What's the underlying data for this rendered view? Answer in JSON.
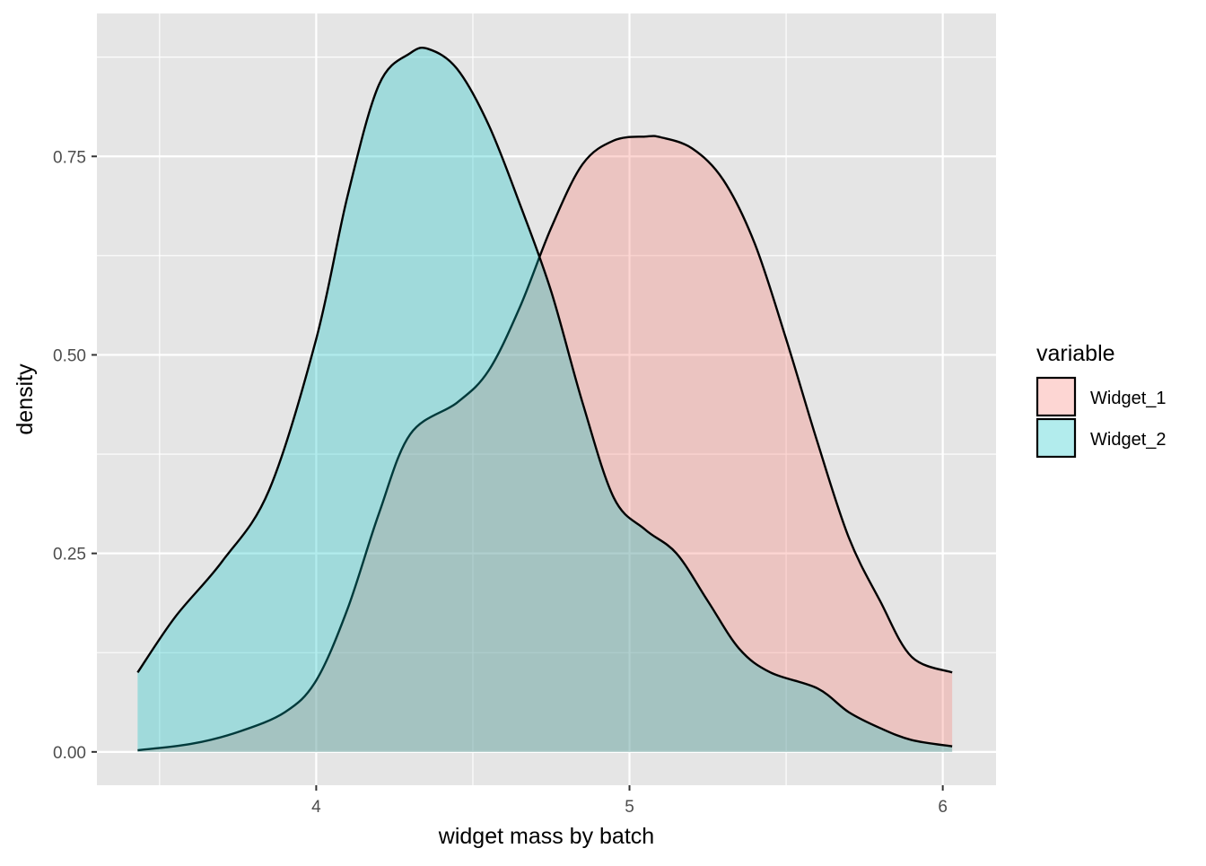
{
  "chart_data": {
    "type": "area",
    "chart_subtype": "density",
    "title": "",
    "xlabel": "widget mass by batch",
    "ylabel": "density",
    "xlim": [
      3.3,
      6.17
    ],
    "ylim": [
      -0.042,
      0.93
    ],
    "x_ticks": [
      4,
      5,
      6
    ],
    "x_tick_labels": [
      "4",
      "5",
      "6"
    ],
    "x_minor_ticks": [
      3.5,
      4.5,
      5.5
    ],
    "y_ticks": [
      0,
      0.25,
      0.5,
      0.75
    ],
    "y_tick_labels": [
      "0.00",
      "0.25",
      "0.50",
      "0.75"
    ],
    "y_minor_ticks": [
      0.125,
      0.375,
      0.625,
      0.875
    ],
    "grid": true,
    "panel_background": "#e5e5e5",
    "legend": {
      "title": "variable",
      "position": "right"
    },
    "fill_opacity": 0.3,
    "outline_color": "#000000",
    "series": [
      {
        "name": "Widget_1",
        "color": "#f8766d",
        "x": [
          3.43,
          3.6,
          3.75,
          3.9,
          4.0,
          4.1,
          4.2,
          4.3,
          4.45,
          4.55,
          4.65,
          4.75,
          4.85,
          4.95,
          5.05,
          5.1,
          5.2,
          5.3,
          5.4,
          5.5,
          5.6,
          5.7,
          5.8,
          5.9,
          6.03
        ],
        "values": [
          0.002,
          0.01,
          0.025,
          0.05,
          0.09,
          0.18,
          0.3,
          0.4,
          0.44,
          0.48,
          0.56,
          0.66,
          0.74,
          0.77,
          0.775,
          0.774,
          0.76,
          0.72,
          0.64,
          0.52,
          0.39,
          0.27,
          0.19,
          0.12,
          0.1
        ]
      },
      {
        "name": "Widget_2",
        "color": "#00bfc4",
        "x": [
          3.43,
          3.55,
          3.7,
          3.85,
          4.0,
          4.1,
          4.2,
          4.3,
          4.36,
          4.45,
          4.55,
          4.65,
          4.75,
          4.85,
          4.95,
          5.05,
          5.15,
          5.25,
          5.35,
          5.45,
          5.6,
          5.7,
          5.8,
          5.9,
          6.03
        ],
        "values": [
          0.1,
          0.17,
          0.24,
          0.33,
          0.52,
          0.7,
          0.84,
          0.88,
          0.885,
          0.86,
          0.79,
          0.69,
          0.58,
          0.44,
          0.32,
          0.28,
          0.25,
          0.19,
          0.13,
          0.1,
          0.08,
          0.05,
          0.03,
          0.015,
          0.007
        ]
      }
    ]
  }
}
